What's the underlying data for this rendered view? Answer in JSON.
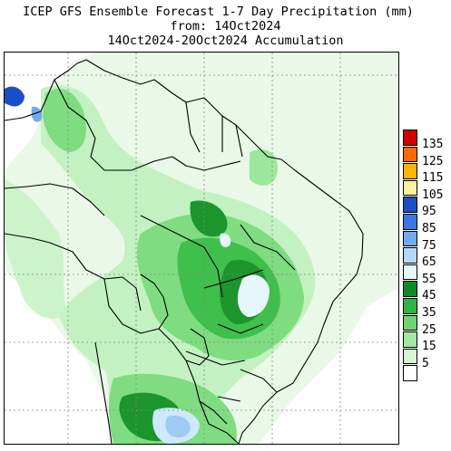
{
  "title": {
    "line1": "ICEP GFS Ensemble Forecast 1-7 Day Precipitation (mm)",
    "line2": "from: 14Oct2024",
    "line3": "14Oct2024-20Oct2024 Accumulation"
  },
  "legend": {
    "items": [
      {
        "label": "135",
        "color": "#cc0000"
      },
      {
        "label": "125",
        "color": "#ff6a00"
      },
      {
        "label": "115",
        "color": "#ffb400"
      },
      {
        "label": "105",
        "color": "#fff0a0"
      },
      {
        "label": "95",
        "color": "#1a4fc4"
      },
      {
        "label": "85",
        "color": "#3a78e0"
      },
      {
        "label": "75",
        "color": "#73aaf0"
      },
      {
        "label": "65",
        "color": "#b4d8fa"
      },
      {
        "label": "55",
        "color": "#e6f7fb"
      },
      {
        "label": "45",
        "color": "#118a26"
      },
      {
        "label": "35",
        "color": "#31b542"
      },
      {
        "label": "25",
        "color": "#6fd572"
      },
      {
        "label": "15",
        "color": "#a5e8a3"
      },
      {
        "label": "5",
        "color": "#d6f5d3"
      },
      {
        "label": "",
        "color": "#ffffff"
      }
    ]
  }
}
